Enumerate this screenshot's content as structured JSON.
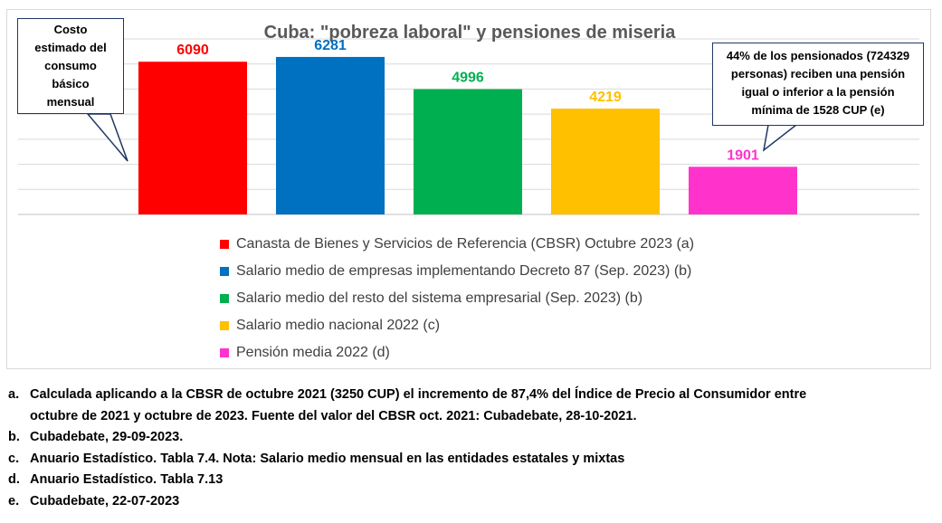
{
  "chart_data": {
    "type": "bar",
    "title": "Cuba: \"pobreza laboral\" y pensiones de miseria",
    "categories": [
      "Canasta de Bienes y Servicios de Referencia (CBSR) Octubre 2023 (a)",
      "Salario medio de empresas implementando Decreto 87 (Sep. 2023) (b)",
      "Salario medio del resto del sistema empresarial (Sep. 2023) (b)",
      "Salario medio nacional 2022 (c)",
      "Pensión media 2022 (d)"
    ],
    "values": [
      6090,
      6281,
      4996,
      4219,
      1901
    ],
    "data_labels": [
      "6090",
      "6281",
      "4996",
      "4219",
      "1901"
    ],
    "colors": [
      "#ff0000",
      "#0070c0",
      "#00b050",
      "#ffc000",
      "#ff33cc"
    ],
    "ylim": [
      0,
      7000
    ],
    "grid": true,
    "legend_position": "bottom",
    "annotations": [
      "Costo estimado del consumo básico mensual",
      "44% de los pensionados (724329 personas) reciben una pensión igual o inferior a la pensión mínima de 1528 CUP (e)"
    ]
  },
  "callout_left_lines": [
    "Costo",
    "estimado del",
    "consumo",
    "básico",
    "mensual"
  ],
  "callout_right_lines": [
    "44% de los pensionados (724329",
    "personas) reciben una pensión",
    "igual o inferior a la pensión",
    "mínima de 1528 CUP (e)"
  ],
  "notes": [
    {
      "letter": "a.",
      "lines": [
        "Calculada aplicando a la CBSR de octubre 2021 (3250 CUP) el incremento de 87,4% del Índice de Precio al Consumidor entre",
        "octubre de 2021 y octubre de 2023. Fuente del valor del CBSR oct. 2021: Cubadebate, 28-10-2021."
      ]
    },
    {
      "letter": "b.",
      "lines": [
        "Cubadebate, 29-09-2023."
      ]
    },
    {
      "letter": "c.",
      "lines": [
        "Anuario Estadístico. Tabla 7.4. Nota: Salario medio mensual en las entidades estatales y mixtas"
      ]
    },
    {
      "letter": "d.",
      "lines": [
        "Anuario Estadístico. Tabla 7.13"
      ]
    },
    {
      "letter": "e.",
      "lines": [
        "Cubadebate, 22-07-2023"
      ]
    }
  ]
}
